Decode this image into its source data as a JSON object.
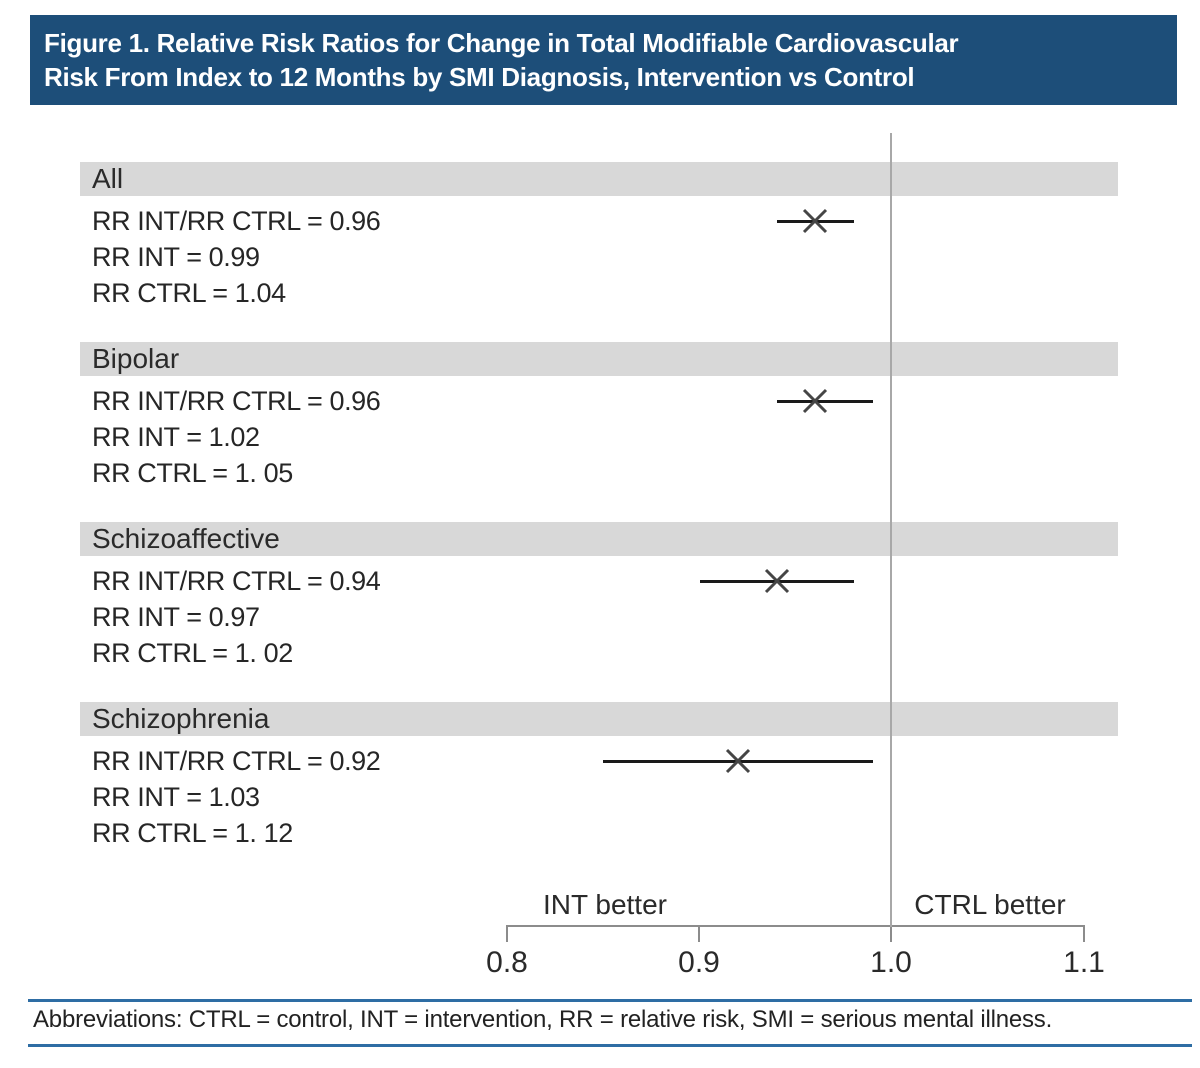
{
  "header": {
    "title_line1": "Figure 1. Relative Risk Ratios for Change in Total Modifiable Cardiovascular",
    "title_line2": "Risk From Index to 12 Months by SMI Diagnosis, Intervention vs Control"
  },
  "chart_data": {
    "type": "forest",
    "title": "Figure 1. Relative Risk Ratios for Change in Total Modifiable Cardiovascular Risk From Index to 12 Months by SMI Diagnosis, Intervention vs Control",
    "x_axis": {
      "range": [
        0.8,
        1.1
      ],
      "ticks": [
        0.8,
        0.9,
        1.0,
        1.1
      ],
      "tick_labels": [
        "0.8",
        "0.9",
        "1.0",
        "1.1"
      ],
      "reference_line": 1.0
    },
    "direction_labels": {
      "left": "INT better",
      "right": "CTRL better"
    },
    "groups": [
      {
        "label": "All",
        "stats": [
          "RR INT/RR CTRL = 0.96",
          "RR INT = 0.99",
          "RR CTRL = 1.04"
        ],
        "estimate": 0.96,
        "ci_low": 0.94,
        "ci_high": 0.98,
        "rr_int": 0.99,
        "rr_ctrl": 1.04
      },
      {
        "label": "Bipolar",
        "stats": [
          "RR INT/RR CTRL = 0.96",
          "RR INT = 1.02",
          "RR CTRL = 1. 05"
        ],
        "estimate": 0.96,
        "ci_low": 0.94,
        "ci_high": 0.99,
        "rr_int": 1.02,
        "rr_ctrl": 1.05
      },
      {
        "label": "Schizoaffective",
        "stats": [
          "RR INT/RR CTRL = 0.94",
          "RR INT = 0.97",
          "RR CTRL = 1. 02"
        ],
        "estimate": 0.94,
        "ci_low": 0.9,
        "ci_high": 0.98,
        "rr_int": 0.97,
        "rr_ctrl": 1.02
      },
      {
        "label": "Schizophrenia",
        "stats": [
          "RR INT/RR CTRL = 0.92",
          "RR INT = 1.03",
          "RR CTRL = 1. 12"
        ],
        "estimate": 0.92,
        "ci_low": 0.85,
        "ci_high": 0.99,
        "rr_int": 1.03,
        "rr_ctrl": 1.12
      }
    ],
    "legend_position": "none",
    "grid": false
  },
  "footer": {
    "abbreviations": "Abbreviations: CTRL = control, INT = intervention, RR = relative risk, SMI = serious mental illness."
  },
  "colors": {
    "header_bg": "#1d4e79",
    "header_text": "#ffffff",
    "banner_bg": "#d8d8d8",
    "body_text": "#2a2a2a",
    "reference_line": "#a8a8a8",
    "axis": "#8c8c8c",
    "ci_line": "#1a1a1a",
    "x_marker": "#454545",
    "footer_rule": "#2e6da4"
  }
}
